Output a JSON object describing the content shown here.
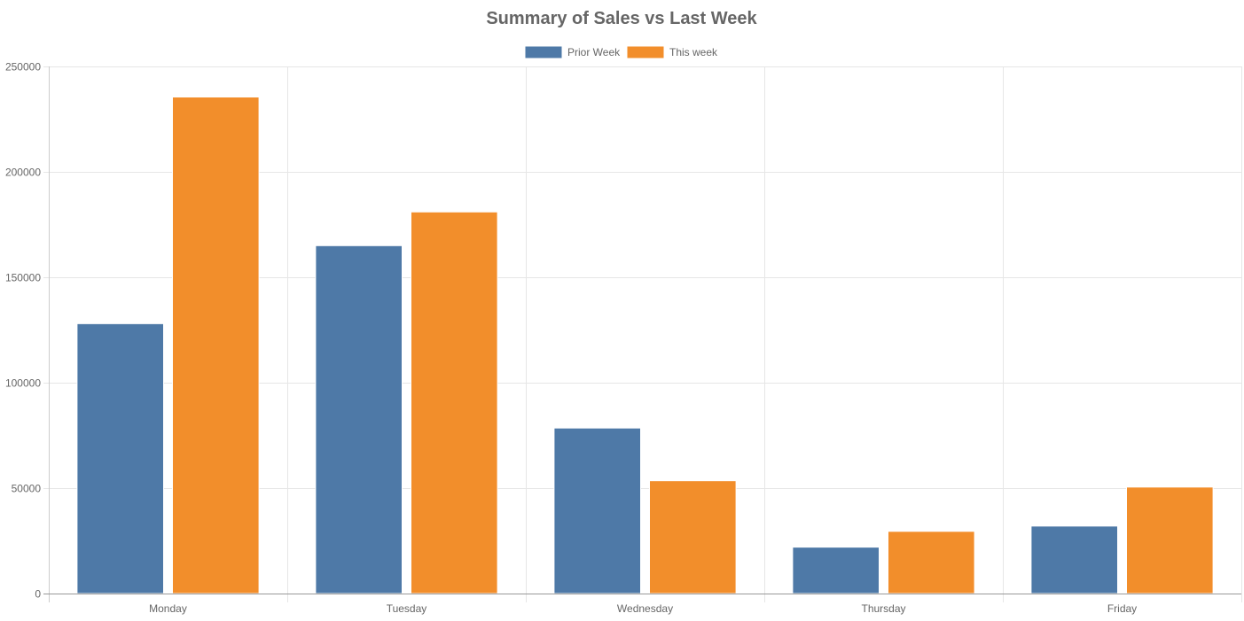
{
  "chart_data": {
    "type": "bar",
    "title": "Summary of Sales vs Last Week",
    "xlabel": "",
    "ylabel": "",
    "categories": [
      "Monday",
      "Tuesday",
      "Wednesday",
      "Thursday",
      "Friday"
    ],
    "series": [
      {
        "name": "Prior Week",
        "color": "#4e79a7",
        "values": [
          128000,
          165000,
          78500,
          22000,
          32000
        ]
      },
      {
        "name": "This week",
        "color": "#f28e2b",
        "values": [
          235500,
          181000,
          53500,
          29500,
          50500
        ]
      }
    ],
    "ylim": [
      0,
      250000
    ],
    "yticks": [
      "0",
      "50000",
      "100000",
      "150000",
      "200000",
      "250000"
    ],
    "grid": true,
    "legend_position": "top"
  }
}
